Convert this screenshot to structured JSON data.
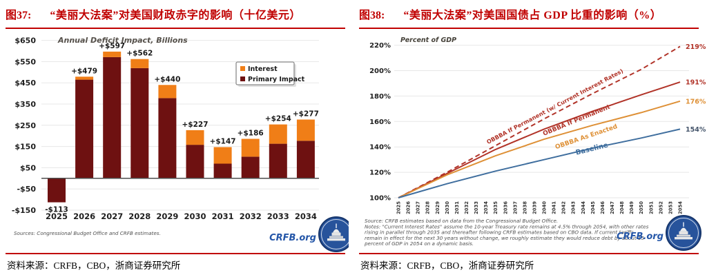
{
  "fig37": {
    "label": "图37:",
    "title": "“美丽大法案”对美国财政赤字的影响（十亿美元）",
    "caption": "资料来源：CRFB，CBO，浙商证券研究所",
    "source_note": "Sources: Congressional Budget Office and CRFB estimates.",
    "logo_text": "CRFB.org",
    "legend": [
      {
        "label": "Interest",
        "color": "#F07E17"
      },
      {
        "label": "Primary Impact",
        "color": "#6E1111"
      }
    ]
  },
  "fig38": {
    "label": "图38:",
    "title": "“美丽大法案”对美国国债占 GDP 比重的影响（%）",
    "caption": "资料来源：CRFB，CBO，浙商证券研究所",
    "source_note_lines": [
      "Source: CRFB estimates based on data from the Congressional Budget Office.",
      "Notes: \"Current Interest Rates\" assume the 10-year Treasury rate remains at 4.5% through 2054, with other rates",
      "rising in parallel through 2035 and thereafter following CRFB estimates based on CBO data. If current tariffs",
      "remain in effect for the next 30 years without change, we roughly estimate they would reduce debt by about 15",
      "percent of GDP in 2054 on a dynamic basis."
    ],
    "logo_text": "CRFB.org"
  },
  "chart_data": [
    {
      "type": "bar",
      "stacked": true,
      "title": "Annual Deficit Impact, Billions",
      "categories": [
        "2025",
        "2026",
        "2027",
        "2028",
        "2029",
        "2030",
        "2031",
        "2032",
        "2033",
        "2034"
      ],
      "series": [
        {
          "name": "Primary Impact",
          "color": "#6E1111",
          "values": [
            -113,
            465,
            571,
            519,
            378,
            158,
            69,
            102,
            163,
            177
          ]
        },
        {
          "name": "Interest",
          "color": "#F07E17",
          "values": [
            0,
            14,
            26,
            43,
            62,
            69,
            78,
            84,
            91,
            100
          ]
        }
      ],
      "totals": [
        -113,
        479,
        597,
        562,
        440,
        227,
        147,
        186,
        254,
        277
      ],
      "total_labels": [
        "-$113",
        "+$479",
        "+$597",
        "+$562",
        "+$440",
        "+$227",
        "+$147",
        "+$186",
        "+$254",
        "+$277"
      ],
      "ytick_values": [
        650,
        550,
        450,
        350,
        250,
        150,
        50,
        -50,
        -150
      ],
      "ytick_labels": [
        "$650",
        "$550",
        "$450",
        "$350",
        "$250",
        "$150",
        "$50",
        "-$50",
        "-$150"
      ],
      "ylim": [
        -150,
        650
      ],
      "grid": true,
      "legend_position": "upper-right-inset"
    },
    {
      "type": "line",
      "title": "Percent of GDP",
      "x": [
        2025,
        2030,
        2035,
        2040,
        2045,
        2050,
        2054
      ],
      "series": [
        {
          "name": "OBBBA If Permanent (w/ Current Interest Rates)",
          "color": "#B13328",
          "dash": true,
          "values": [
            100,
            120,
            141,
            162,
            182,
            201,
            219
          ],
          "end_label": "219%",
          "end_label_color": "#B13328"
        },
        {
          "name": "OBBBA If Permanent",
          "color": "#B13328",
          "dash": false,
          "values": [
            100,
            119,
            138,
            154,
            168,
            181,
            191
          ],
          "end_label": "191%",
          "end_label_color": "#B13328"
        },
        {
          "name": "OBBBA As Enacted",
          "color": "#DE9036",
          "dash": false,
          "values": [
            100,
            118,
            133,
            146,
            157,
            167,
            176
          ],
          "end_label": "176%",
          "end_label_color": "#DE9036"
        },
        {
          "name": "Baseline",
          "color": "#3F6E9E",
          "dash": false,
          "values": [
            100,
            111,
            121,
            130,
            139,
            147,
            154
          ],
          "end_label": "154%",
          "end_label_color": "#44546A"
        }
      ],
      "xtick_labels": [
        "2025",
        "2026",
        "2027",
        "2028",
        "2029",
        "2030",
        "2031",
        "2032",
        "2033",
        "2034",
        "2035",
        "2036",
        "2037",
        "2038",
        "2039",
        "2040",
        "2041",
        "2042",
        "2043",
        "2044",
        "2045",
        "2046",
        "2047",
        "2048",
        "2049",
        "2050",
        "2051",
        "2052",
        "2053",
        "2054"
      ],
      "ytick_values": [
        100,
        120,
        140,
        160,
        180,
        200,
        220
      ],
      "ytick_labels": [
        "100%",
        "120%",
        "140%",
        "160%",
        "180%",
        "200%",
        "220%"
      ],
      "ylim": [
        100,
        225
      ],
      "grid": true,
      "legend_position": "inline-labels"
    }
  ]
}
